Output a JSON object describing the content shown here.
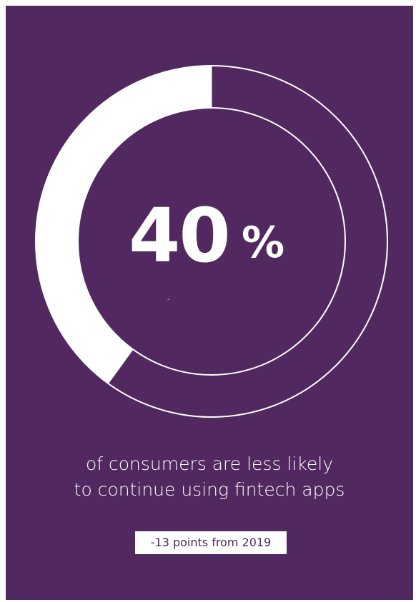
{
  "chart_data": {
    "type": "pie",
    "categories": [
      "",
      ""
    ],
    "values": [
      40,
      60
    ],
    "colors": [
      "#ffffff",
      "#51285f"
    ],
    "title": "",
    "xlabel": "",
    "ylabel": ""
  },
  "stat": {
    "value": "40",
    "unit": "%"
  },
  "separator": "-",
  "caption": {
    "line1": "of consumers are less likely",
    "line2": "to continue using fintech apps"
  },
  "badge": {
    "text": "-13 points from 2019"
  },
  "colors": {
    "background": "#51285f",
    "highlight": "#ffffff"
  }
}
